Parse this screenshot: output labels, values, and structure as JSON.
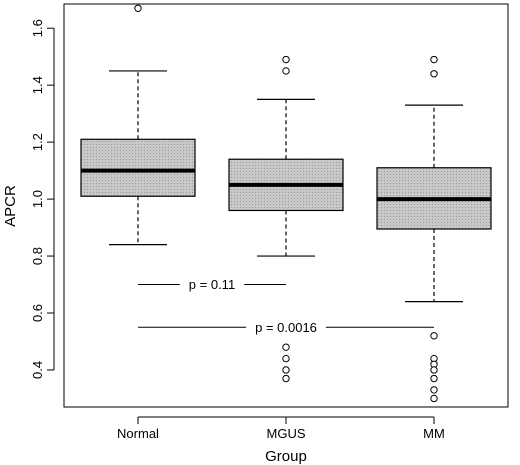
{
  "chart_data": {
    "type": "boxplot",
    "title": "",
    "xlabel": "Group",
    "ylabel": "APCR",
    "ylim": [
      0.27,
      1.685
    ],
    "yticks": [
      0.4,
      0.6,
      0.8,
      1.0,
      1.2,
      1.4,
      1.6
    ],
    "ytick_labels": [
      "0.4",
      "0.6",
      "0.8",
      "1.0",
      "1.2",
      "1.4",
      "1.6"
    ],
    "categories": [
      "Normal",
      "MGUS",
      "MM"
    ],
    "boxes": [
      {
        "group": "Normal",
        "whisker_low": 0.84,
        "q1": 1.01,
        "median": 1.1,
        "q3": 1.21,
        "whisker_high": 1.45,
        "outliers": [
          1.67
        ]
      },
      {
        "group": "MGUS",
        "whisker_low": 0.8,
        "q1": 0.96,
        "median": 1.05,
        "q3": 1.14,
        "whisker_high": 1.35,
        "outliers": [
          1.49,
          1.45,
          0.48,
          0.44,
          0.4,
          0.37
        ]
      },
      {
        "group": "MM",
        "whisker_low": 0.64,
        "q1": 0.895,
        "median": 1.0,
        "q3": 1.11,
        "whisker_high": 1.33,
        "outliers": [
          1.49,
          1.44,
          0.52,
          0.44,
          0.42,
          0.4,
          0.37,
          0.33,
          0.3
        ]
      }
    ],
    "annotations": [
      {
        "text": "p = 0.11",
        "y": 0.7,
        "from": "Normal",
        "to": "MGUS"
      },
      {
        "text": "p = 0.0016",
        "y": 0.55,
        "from": "Normal",
        "to": "MM"
      }
    ],
    "box_fill": "#c8c8c8",
    "grid": false,
    "legend": "none"
  }
}
